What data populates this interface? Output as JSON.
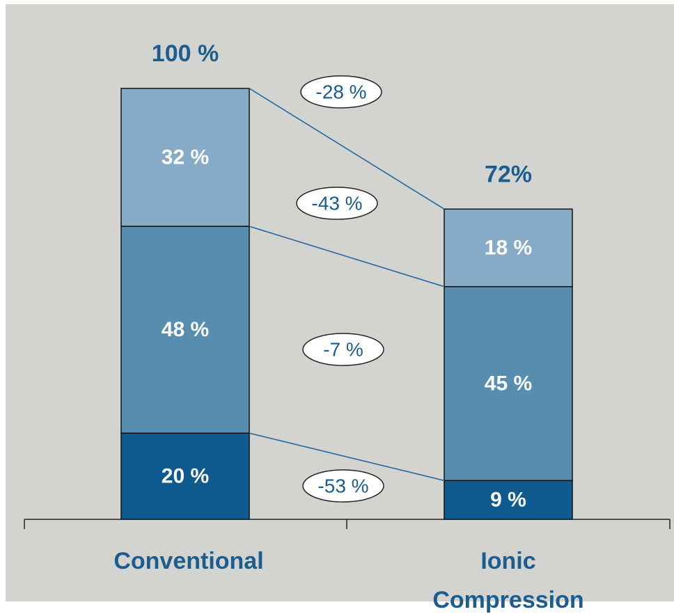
{
  "chart_data": {
    "type": "bar",
    "stacked": true,
    "categories": [
      "Conventional",
      "Ionic Compression"
    ],
    "category_label_lines": [
      [
        "Conventional"
      ],
      [
        "Ionic",
        "Compression"
      ]
    ],
    "totals": [
      "100 %",
      "72%"
    ],
    "series": [
      {
        "values": [
          20,
          9
        ],
        "labels": [
          "20 %",
          "9 %"
        ],
        "color": "#0f5a8e"
      },
      {
        "values": [
          48,
          45
        ],
        "labels": [
          "48 %",
          "45 %"
        ],
        "color": "#578daf"
      },
      {
        "values": [
          32,
          18
        ],
        "labels": [
          "32 %",
          "18 %"
        ],
        "color": "#87abc6"
      }
    ],
    "changes": [
      "-28 %",
      "-43 %",
      "-7 %",
      "-53 %"
    ],
    "ylim": [
      0,
      100
    ],
    "grid": false,
    "legend": "none"
  },
  "colors": {
    "background": "#d3d4cf",
    "text_blue": "#1c5d8f",
    "connector": "#2466a0",
    "bar_outline": "#111111",
    "bar_label": "#ffffff"
  }
}
